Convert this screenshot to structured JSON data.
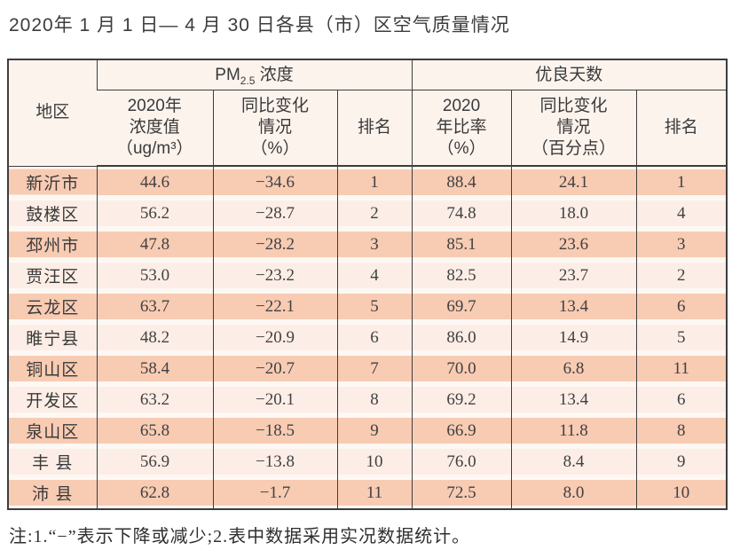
{
  "title": "2020年 1 月 1 日— 4 月 30 日各县（市）区空气质量情况",
  "note": "注:1.“−”表示下降或减少;2.表中数据采用实况数据统计。",
  "colors": {
    "stripe_dark": "#f8cbb3",
    "stripe_light": "#fceee6",
    "header_bg": "#fcf3ed",
    "row_gap": "#fdf8f4",
    "border": "#3d3d3d",
    "text": "#3e3e3e"
  },
  "chart_data": {
    "type": "table",
    "region_header": "地区",
    "group_pm": {
      "prefix": "PM",
      "sub": "2.5",
      "suffix": " 浓度"
    },
    "group_good": "优良天数",
    "columns": [
      "2020年\n浓度值\n（ug/m³）",
      "同比变化\n情况\n（%）",
      "排名",
      "2020\n年比率\n（%）",
      "同比变化\n情况\n（百分点）",
      "排名"
    ],
    "rows": [
      {
        "region": "新沂市",
        "pm_value": "44.6",
        "pm_change": "−34.6",
        "pm_rank": "1",
        "good_ratio": "88.4",
        "good_change": "24.1",
        "good_rank": "1"
      },
      {
        "region": "鼓楼区",
        "pm_value": "56.2",
        "pm_change": "−28.7",
        "pm_rank": "2",
        "good_ratio": "74.8",
        "good_change": "18.0",
        "good_rank": "4"
      },
      {
        "region": "邳州市",
        "pm_value": "47.8",
        "pm_change": "−28.2",
        "pm_rank": "3",
        "good_ratio": "85.1",
        "good_change": "23.6",
        "good_rank": "3"
      },
      {
        "region": "贾汪区",
        "pm_value": "53.0",
        "pm_change": "−23.2",
        "pm_rank": "4",
        "good_ratio": "82.5",
        "good_change": "23.7",
        "good_rank": "2"
      },
      {
        "region": "云龙区",
        "pm_value": "63.7",
        "pm_change": "−22.1",
        "pm_rank": "5",
        "good_ratio": "69.7",
        "good_change": "13.4",
        "good_rank": "6"
      },
      {
        "region": "睢宁县",
        "pm_value": "48.2",
        "pm_change": "−20.9",
        "pm_rank": "6",
        "good_ratio": "86.0",
        "good_change": "14.9",
        "good_rank": "5"
      },
      {
        "region": "铜山区",
        "pm_value": "58.4",
        "pm_change": "−20.7",
        "pm_rank": "7",
        "good_ratio": "70.0",
        "good_change": "6.8",
        "good_rank": "11"
      },
      {
        "region": "开发区",
        "pm_value": "63.2",
        "pm_change": "−20.1",
        "pm_rank": "8",
        "good_ratio": "69.2",
        "good_change": "13.4",
        "good_rank": "6"
      },
      {
        "region": "泉山区",
        "pm_value": "65.8",
        "pm_change": "−18.5",
        "pm_rank": "9",
        "good_ratio": "66.9",
        "good_change": "11.8",
        "good_rank": "8"
      },
      {
        "region": "丰 县",
        "pm_value": "56.9",
        "pm_change": "−13.8",
        "pm_rank": "10",
        "good_ratio": "76.0",
        "good_change": "8.4",
        "good_rank": "9"
      },
      {
        "region": "沛 县",
        "pm_value": "62.8",
        "pm_change": "−1.7",
        "pm_rank": "11",
        "good_ratio": "72.5",
        "good_change": "8.0",
        "good_rank": "10"
      }
    ]
  }
}
